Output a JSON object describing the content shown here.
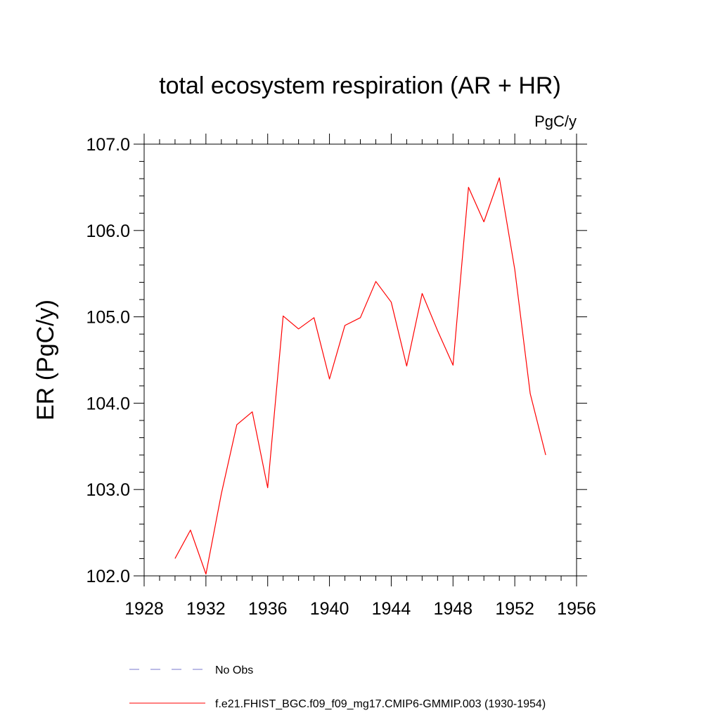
{
  "chart_data": {
    "type": "line",
    "title": "total ecosystem respiration (AR + HR)",
    "units": "PgC/y",
    "ylabel": "ER  (PgC/y)",
    "xlabel": "",
    "xlim": [
      1928,
      1956
    ],
    "ylim": [
      102.0,
      107.0
    ],
    "xticks": [
      1928,
      1932,
      1936,
      1940,
      1944,
      1948,
      1952,
      1956
    ],
    "xtick_labels": [
      "1928",
      "1932",
      "1936",
      "1940",
      "1944",
      "1948",
      "1952",
      "1956"
    ],
    "yticks": [
      102.0,
      103.0,
      104.0,
      105.0,
      106.0,
      107.0
    ],
    "ytick_labels": [
      "102.0",
      "103.0",
      "104.0",
      "105.0",
      "106.0",
      "107.0"
    ],
    "grid": false,
    "series": [
      {
        "name": "f.e21.FHIST_BGC.f09_f09_mg17.CMIP6-GMMIP.003 (1930-1954)",
        "color": "#ff0000",
        "style": "solid",
        "x": [
          1930,
          1931,
          1932,
          1933,
          1934,
          1935,
          1936,
          1937,
          1938,
          1939,
          1940,
          1941,
          1942,
          1943,
          1944,
          1945,
          1946,
          1947,
          1948,
          1949,
          1950,
          1951,
          1952,
          1953,
          1954
        ],
        "y": [
          102.2,
          102.53,
          102.02,
          102.95,
          103.75,
          103.9,
          103.02,
          105.01,
          104.86,
          104.99,
          104.28,
          104.9,
          104.99,
          105.41,
          105.17,
          104.43,
          105.27,
          104.84,
          104.44,
          106.5,
          106.1,
          106.61,
          105.55,
          104.11,
          103.4
        ]
      }
    ],
    "legend": [
      {
        "label": "No Obs",
        "color": "#7777cc",
        "style": "dashed"
      },
      {
        "label": "f.e21.FHIST_BGC.f09_f09_mg17.CMIP6-GMMIP.003 (1930-1954)",
        "color": "#ff0000",
        "style": "solid"
      }
    ]
  }
}
